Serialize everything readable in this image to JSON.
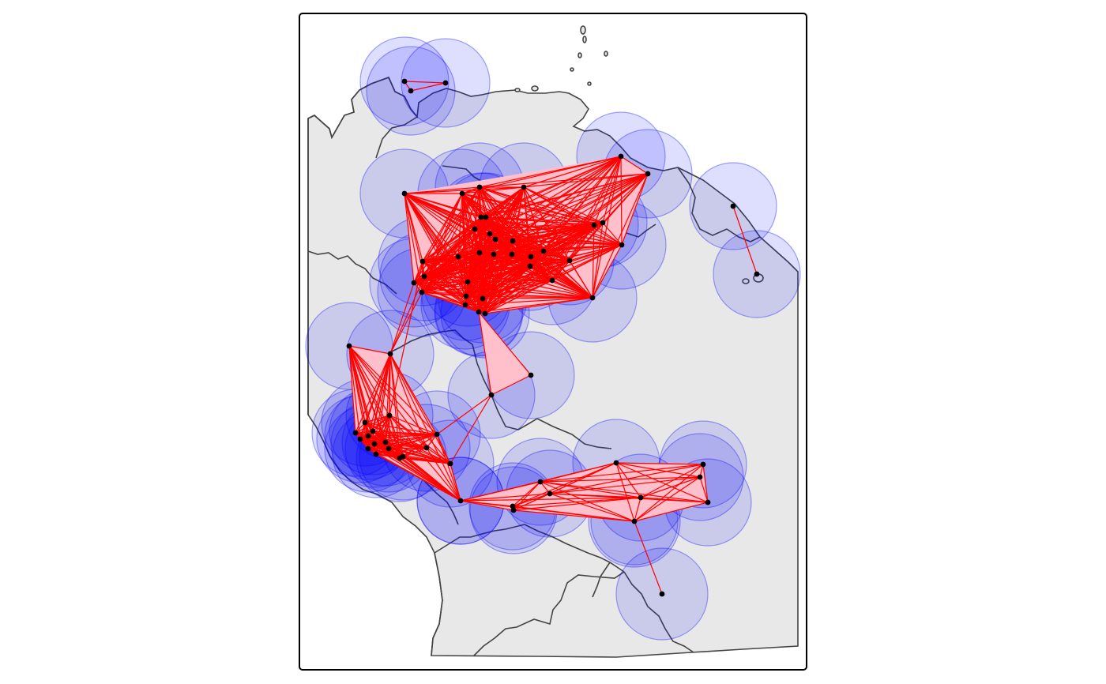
{
  "map": {
    "style": {
      "land_fill": "#e8e8e8",
      "border_color": "#444444",
      "buffer_fill": "#0000ff",
      "buffer_stroke": "#0000ff",
      "polygon_fill": "#ffc0cb",
      "edge_color": "#ff0000",
      "point_color": "#000000",
      "frame_color": "#000000"
    },
    "layers": [
      "country-borders",
      "buffer-circles",
      "network-polygons",
      "network-edges",
      "occurrence-points"
    ]
  }
}
